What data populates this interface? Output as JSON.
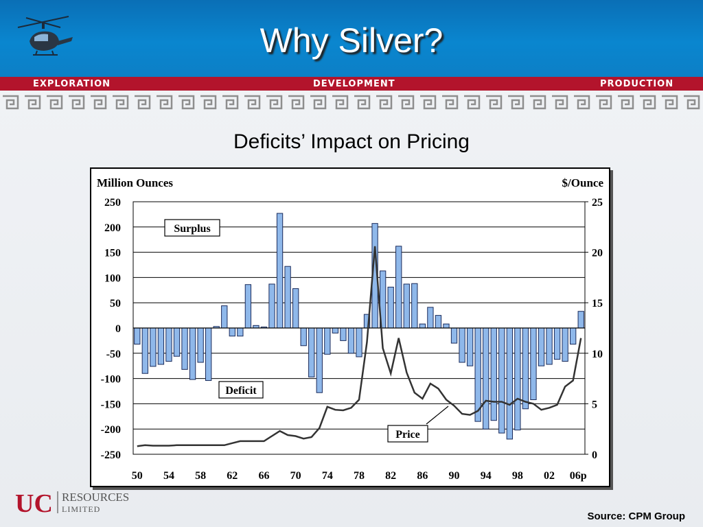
{
  "slide": {
    "title": "Why Silver?",
    "subtitle": "Deficits’ Impact on Pricing",
    "band": {
      "left": "EXPLORATION",
      "center": "DEVELOPMENT",
      "right": "PRODUCTION"
    },
    "logo": {
      "mark": "UC",
      "line1": "RESOURCES",
      "line2": "LIMITED"
    },
    "source": "Source: CPM Group"
  },
  "colors": {
    "header_blue": "#0a7fc6",
    "band_red": "#b3142c",
    "bar_fill": "#8fb8ea",
    "bar_stroke": "#1a2a5a",
    "price_line": "#333333"
  },
  "chart_data": {
    "type": "bar",
    "y_left_label": "Million Ounces",
    "y_right_label": "$/Ounce",
    "ylim_left": [
      -250,
      250
    ],
    "ylim_right": [
      0,
      25
    ],
    "left_ticks": [
      "250",
      "200",
      "150",
      "100",
      "50",
      "0",
      "-50",
      "-100",
      "-150",
      "-200",
      "-250"
    ],
    "right_ticks": [
      "25",
      "20",
      "15",
      "10",
      "5",
      "0"
    ],
    "x_tick_labels": [
      "50",
      "54",
      "58",
      "62",
      "66",
      "70",
      "74",
      "78",
      "82",
      "86",
      "90",
      "94",
      "98",
      "02",
      "06p"
    ],
    "grid": true,
    "annotations": {
      "surplus": "Surplus",
      "deficit": "Deficit",
      "price": "Price"
    },
    "years": [
      1950,
      1951,
      1952,
      1953,
      1954,
      1955,
      1956,
      1957,
      1958,
      1959,
      1960,
      1961,
      1962,
      1963,
      1964,
      1965,
      1966,
      1967,
      1968,
      1969,
      1970,
      1971,
      1972,
      1973,
      1974,
      1975,
      1976,
      1977,
      1978,
      1979,
      1980,
      1981,
      1982,
      1983,
      1984,
      1985,
      1986,
      1987,
      1988,
      1989,
      1990,
      1991,
      1992,
      1993,
      1994,
      1995,
      1996,
      1997,
      1998,
      1999,
      2000,
      2001,
      2002,
      2003,
      2004,
      2005,
      2006
    ],
    "series": [
      {
        "name": "Surplus/Deficit",
        "axis": "left",
        "kind": "bar",
        "values": [
          -32,
          -90,
          -76,
          -72,
          -66,
          -56,
          -82,
          -102,
          -68,
          -104,
          3,
          44,
          -16,
          -16,
          86,
          5,
          2,
          87,
          227,
          122,
          78,
          -35,
          -97,
          -128,
          -52,
          -10,
          -25,
          -50,
          -57,
          27,
          207,
          113,
          81,
          162,
          87,
          88,
          8,
          41,
          25,
          8,
          -30,
          -68,
          -75,
          -185,
          -200,
          -183,
          -208,
          -220,
          -202,
          -160,
          -142,
          -75,
          -72,
          -62,
          -66,
          -32,
          33
        ]
      },
      {
        "name": "Price",
        "axis": "right",
        "kind": "line",
        "values": [
          0.8,
          0.9,
          0.85,
          0.85,
          0.85,
          0.9,
          0.9,
          0.9,
          0.9,
          0.9,
          0.9,
          0.9,
          1.1,
          1.3,
          1.3,
          1.3,
          1.3,
          1.8,
          2.3,
          1.9,
          1.8,
          1.55,
          1.7,
          2.6,
          4.7,
          4.4,
          4.35,
          4.6,
          5.4,
          11.1,
          20.6,
          10.5,
          8.0,
          11.5,
          8.1,
          6.1,
          5.5,
          7.0,
          6.5,
          5.4,
          4.8,
          4.0,
          3.9,
          4.3,
          5.3,
          5.2,
          5.2,
          4.9,
          5.5,
          5.2,
          5.0,
          4.4,
          4.6,
          4.9,
          6.7,
          7.3,
          11.5
        ]
      }
    ]
  }
}
